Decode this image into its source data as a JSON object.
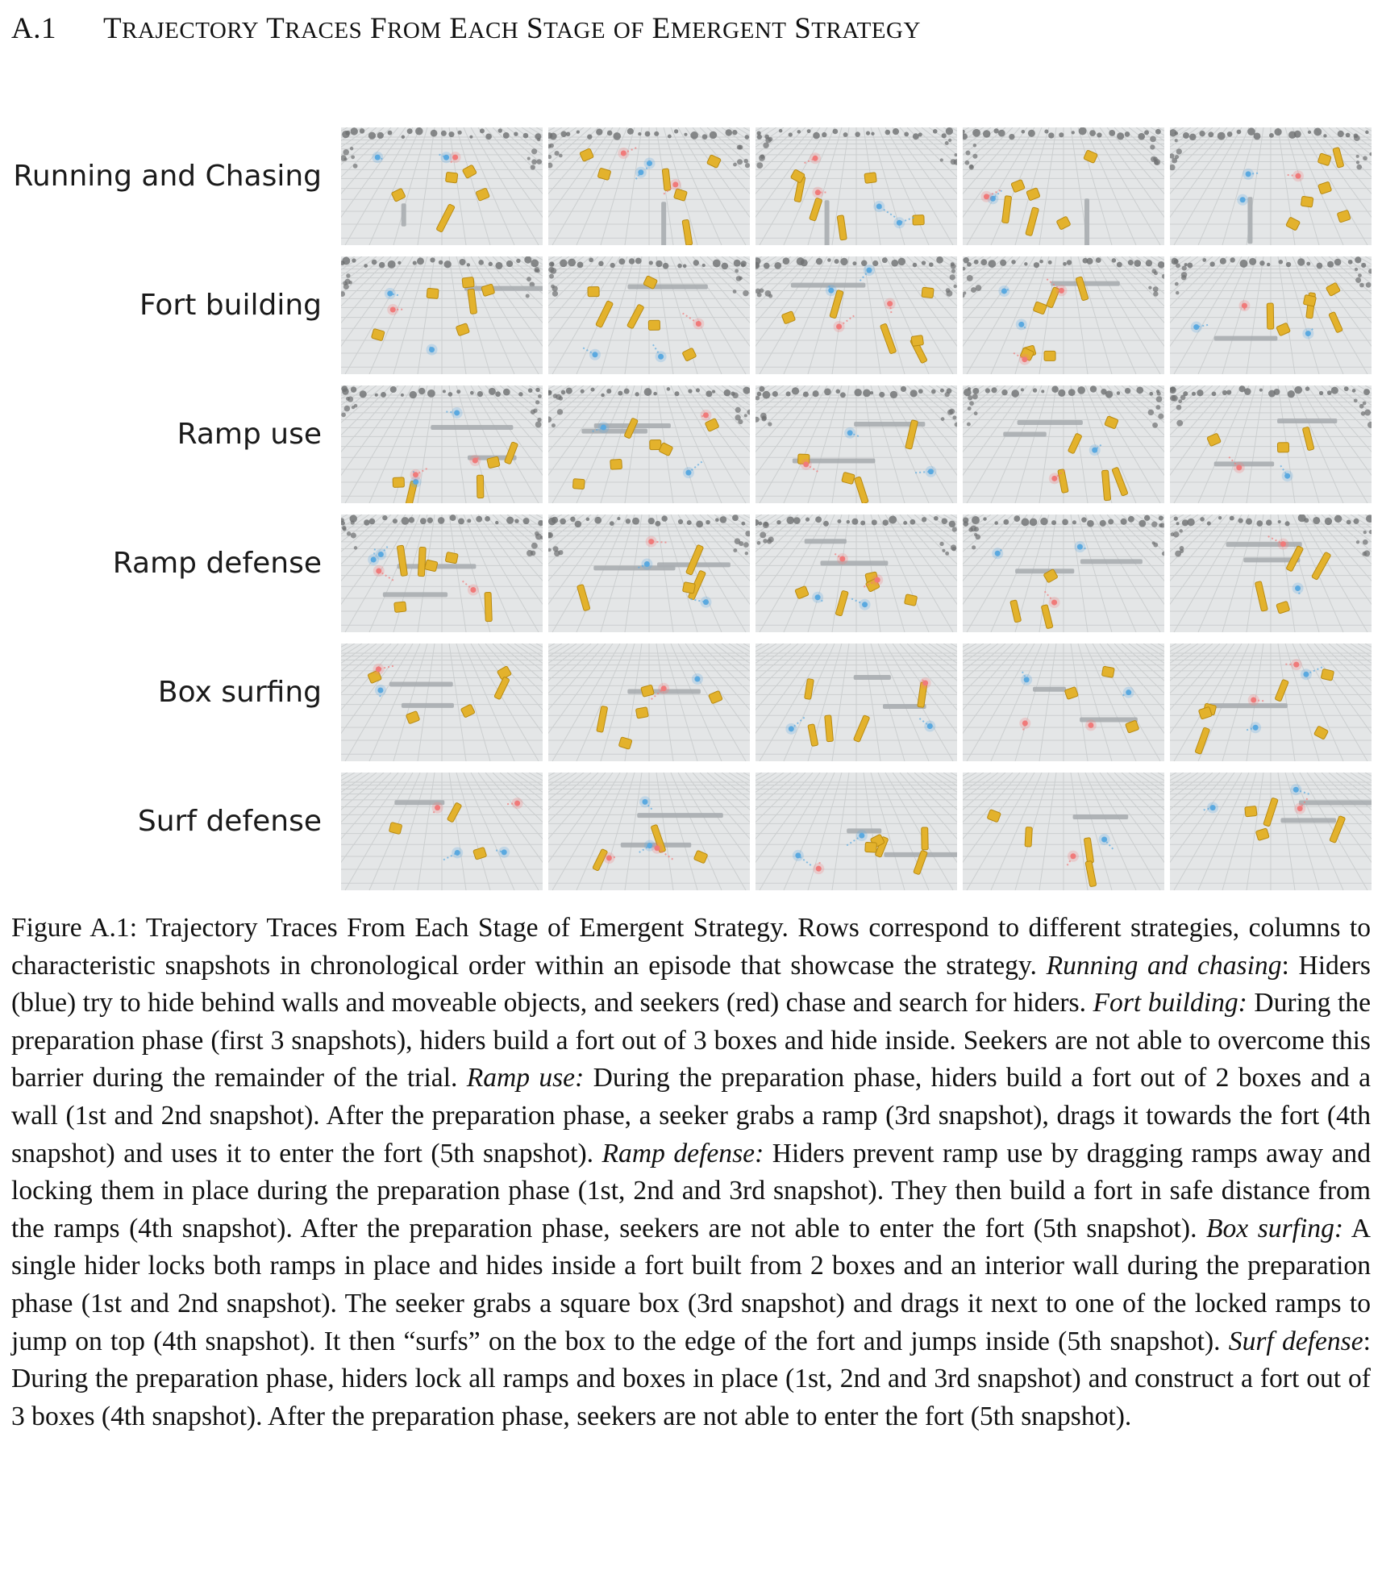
{
  "section": {
    "number": "A.1",
    "title": "Trajectory Traces From Each Stage of Emergent Strategy"
  },
  "figure": {
    "rows": [
      {
        "label": "Running and Chasing"
      },
      {
        "label": "Fort building"
      },
      {
        "label": "Ramp use"
      },
      {
        "label": "Ramp defense"
      },
      {
        "label": "Box surfing"
      },
      {
        "label": "Surf defense"
      }
    ],
    "snapshots_per_row": 5
  },
  "caption": {
    "parts": [
      {
        "text": "Figure A.1: Trajectory Traces From Each Stage of Emergent Strategy. Rows correspond to different strategies, columns to characteristic snapshots in chronological order within an episode that show­case the strategy. ",
        "italic": false
      },
      {
        "text": "Running and chasing",
        "italic": true
      },
      {
        "text": ": Hiders (blue) try to hide behind walls and moveable objects, and seekers (red) chase and search for hiders. ",
        "italic": false
      },
      {
        "text": "Fort building:",
        "italic": true
      },
      {
        "text": " During the preparation phase (first 3 snapshots), hiders build a fort out of 3 boxes and hide inside. Seekers are not able to overcome this barrier during the remainder of the trial. ",
        "italic": false
      },
      {
        "text": "Ramp use:",
        "italic": true
      },
      {
        "text": " During the preparation phase, hiders build a fort out of 2 boxes and a wall (1st and 2nd snapshot). After the preparation phase, a seeker grabs a ramp (3rd snapshot), drags it towards the fort (4th snapshot) and uses it to enter the fort (5th snap­shot). ",
        "italic": false
      },
      {
        "text": "Ramp defense:",
        "italic": true
      },
      {
        "text": " Hiders prevent ramp use by dragging ramps away and locking them in place during the preparation phase (1st, 2nd and 3rd snapshot). They then build a fort in safe distance from the ramps (4th snapshot). After the preparation phase, seekers are not able to enter the fort (5th snapshot). ",
        "italic": false
      },
      {
        "text": "Box surfing:",
        "italic": true
      },
      {
        "text": " A single hider locks both ramps in place and hides inside a fort built from 2 boxes and an interior wall during the preparation phase (1st and 2nd snapshot). The seeker grabs a square box (3rd snapshot) and drags it next to one of the locked ramps to jump on top (4th snapshot). It then “surfs” on the box to the edge of the fort and jumps inside (5th snapshot). ",
        "italic": false
      },
      {
        "text": "Surf defense",
        "italic": true
      },
      {
        "text": ": During the preparation phase, hiders lock all ramps and boxes in place (1st, 2nd and 3rd snapshot) and construct a fort out of 3 boxes (4th snapshot). After the preparation phase, seekers are not able to enter the fort (5th snapshot).",
        "italic": false
      }
    ]
  },
  "colors": {
    "floor": "#e4e6e7",
    "tile_line": "#c9cccd",
    "box": "#e3b22c",
    "box_dark": "#b88a12",
    "wall": "#a9adb0",
    "hider": "#5aa9e0",
    "seeker": "#f07a7a",
    "rubble": "#6d6f70"
  }
}
